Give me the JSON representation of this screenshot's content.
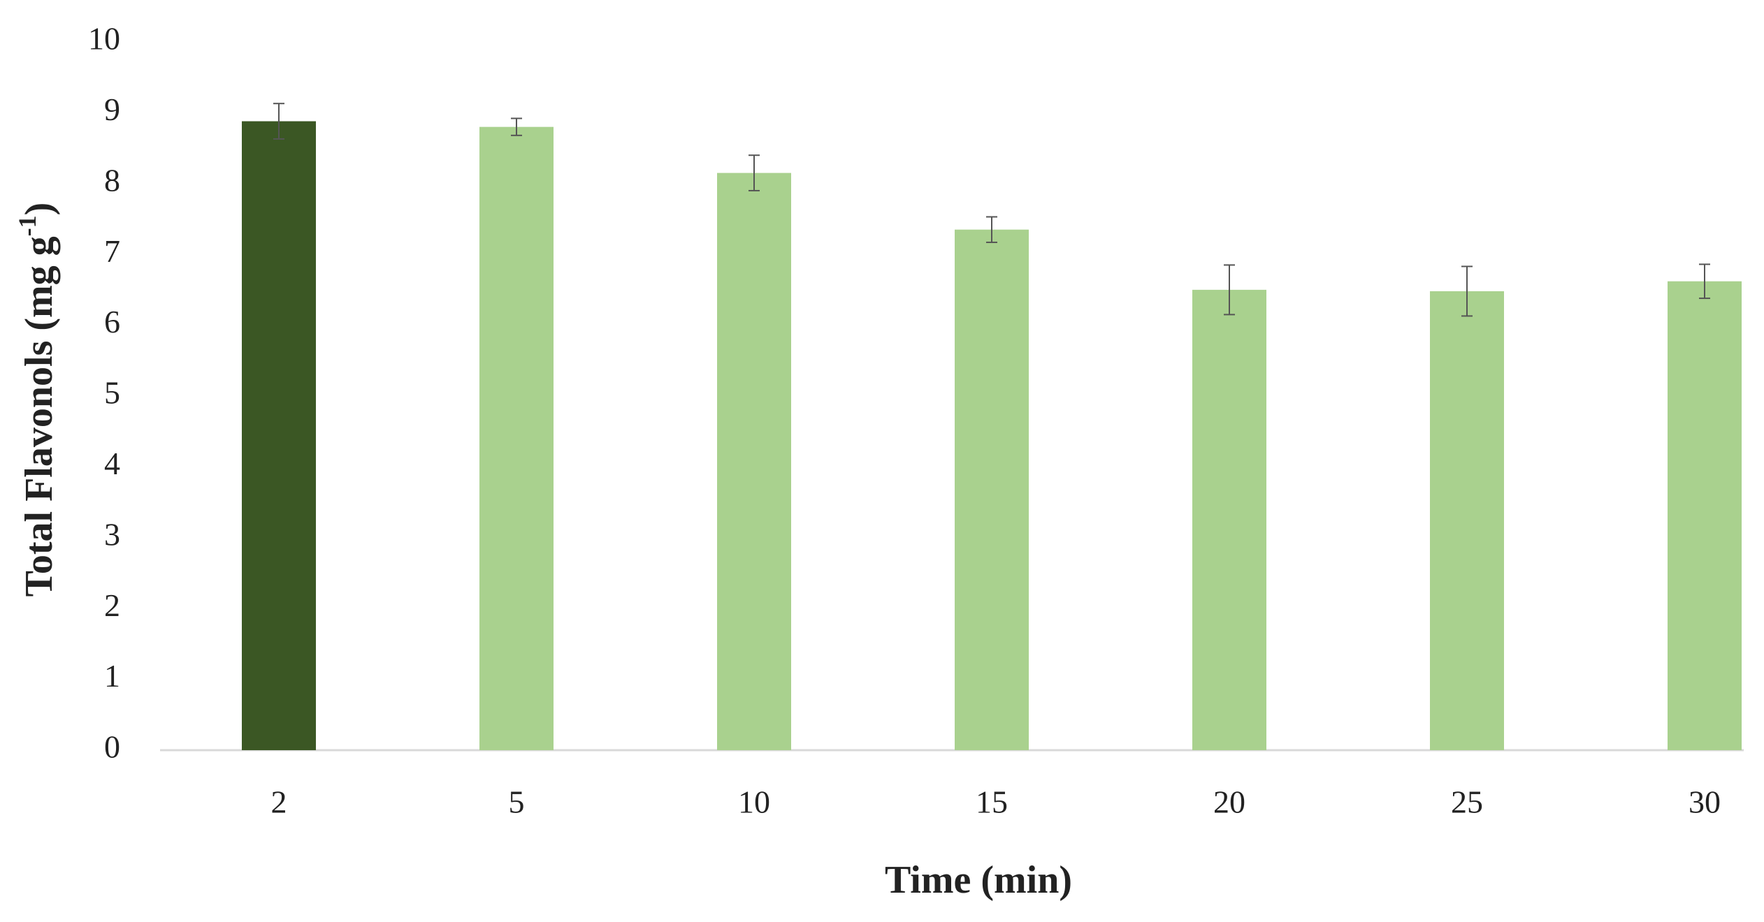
{
  "chart_data": {
    "type": "bar",
    "ylabel": [
      "Total Flavonols (mg g",
      "-1",
      ")"
    ],
    "xlabel": "Time (min)",
    "categories": [
      "2",
      "5",
      "10",
      "15",
      "20",
      "25",
      "30"
    ],
    "values": [
      8.88,
      8.8,
      8.15,
      7.35,
      6.5,
      6.48,
      6.62
    ],
    "errors": [
      0.25,
      0.12,
      0.25,
      0.18,
      0.35,
      0.35,
      0.24
    ],
    "colors": [
      "#3b5724",
      "#a9d18e",
      "#a9d18e",
      "#a9d18e",
      "#a9d18e",
      "#a9d18e",
      "#a9d18e"
    ],
    "ylim": [
      0,
      10
    ],
    "yticks": [
      0,
      1,
      2,
      3,
      4,
      5,
      6,
      7,
      8,
      9,
      10
    ],
    "grid": false
  }
}
